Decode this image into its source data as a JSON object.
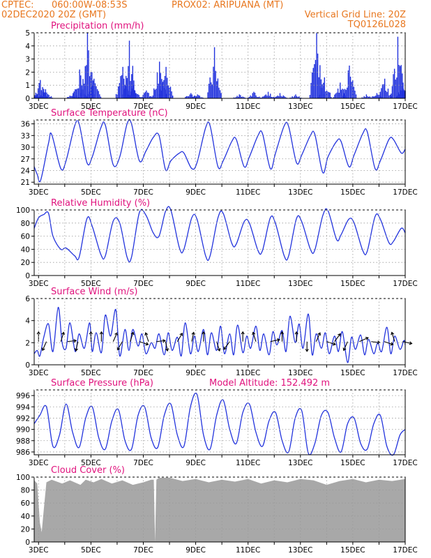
{
  "header": {
    "org": "CPTEC:",
    "coords": "060:00W-08:53S",
    "station": "PROX02: ARIPUANA (MT)",
    "datetime": "02DEC2020 20Z (GMT)",
    "grid_note": "Vertical Grid Line: 20Z",
    "code": "TQ0126L028"
  },
  "colors": {
    "header": "#e8771f",
    "title": "#e0127d",
    "series": "#2233dd",
    "cloud": "#a8a8a8",
    "grid": "#999999"
  },
  "x_axis": {
    "start_day": 2.833,
    "end_day": 17.0,
    "major_days": [
      3,
      5,
      7,
      9,
      11,
      13,
      15,
      17
    ],
    "major_labels": [
      "3DEC",
      "5DEC",
      "7DEC",
      "9DEC",
      "11DEC",
      "13DEC",
      "15DEC",
      "17DEC"
    ]
  },
  "chart_data": [
    {
      "id": "precip",
      "type": "bar",
      "title": "Precipitation (mm/h)",
      "ylim": [
        0,
        5
      ],
      "yticks": [
        0,
        1,
        2,
        3,
        4,
        5
      ],
      "events": [
        {
          "day": 2.95,
          "max": 0.3
        },
        {
          "day": 3.05,
          "max": 1.4
        },
        {
          "day": 3.25,
          "max": 0.7
        },
        {
          "day": 4.3,
          "max": 0.4
        },
        {
          "day": 4.55,
          "max": 2.2
        },
        {
          "day": 4.85,
          "max": 5.0
        },
        {
          "day": 5.1,
          "max": 1.5
        },
        {
          "day": 6.2,
          "max": 2.4
        },
        {
          "day": 6.45,
          "max": 4.4
        },
        {
          "day": 6.6,
          "max": 1.0
        },
        {
          "day": 7.1,
          "max": 0.6
        },
        {
          "day": 7.6,
          "max": 2.8
        },
        {
          "day": 7.85,
          "max": 2.4
        },
        {
          "day": 8.8,
          "max": 0.4
        },
        {
          "day": 9.05,
          "max": 0.3
        },
        {
          "day": 9.7,
          "max": 3.9
        },
        {
          "day": 10.65,
          "max": 0.3
        },
        {
          "day": 11.2,
          "max": 0.5
        },
        {
          "day": 11.75,
          "max": 0.5
        },
        {
          "day": 12.2,
          "max": 0.4
        },
        {
          "day": 12.8,
          "max": 0.3
        },
        {
          "day": 13.6,
          "max": 5.0
        },
        {
          "day": 13.9,
          "max": 1.6
        },
        {
          "day": 14.5,
          "max": 1.2
        },
        {
          "day": 14.85,
          "max": 2.5
        },
        {
          "day": 15.5,
          "max": 0.3
        },
        {
          "day": 15.9,
          "max": 0.4
        },
        {
          "day": 16.2,
          "max": 1.5
        },
        {
          "day": 16.7,
          "max": 4.7
        },
        {
          "day": 16.9,
          "max": 1.2
        }
      ]
    },
    {
      "id": "temp",
      "type": "line",
      "title": "Surface Temperature (nC)",
      "ylim": [
        20.5,
        37
      ],
      "yticks": [
        21,
        24,
        27,
        30,
        33,
        36
      ],
      "x": [
        2.833,
        2.95,
        3.08,
        3.38,
        3.5,
        3.85,
        4.05,
        4.38,
        4.55,
        4.85,
        5.05,
        5.38,
        5.55,
        5.85,
        6.1,
        6.38,
        6.55,
        6.85,
        7.1,
        7.38,
        7.6,
        7.85,
        8.05,
        8.38,
        8.55,
        8.85,
        9.05,
        9.38,
        9.55,
        9.85,
        10.05,
        10.38,
        10.55,
        10.85,
        11.05,
        11.38,
        11.55,
        11.85,
        12.05,
        12.38,
        12.55,
        12.85,
        13.05,
        13.38,
        13.55,
        13.85,
        14.05,
        14.38,
        14.55,
        14.85,
        15.05,
        15.38,
        15.55,
        15.85,
        16.05,
        16.38,
        16.55,
        16.85,
        17.0
      ],
      "y": [
        25.0,
        23.0,
        21.5,
        31.0,
        33.3,
        24.5,
        26.5,
        35.5,
        36.0,
        26.0,
        27.5,
        35.0,
        35.7,
        25.5,
        27.5,
        36.0,
        36.0,
        26.5,
        29.0,
        32.5,
        33.0,
        24.2,
        26.5,
        28.5,
        28.5,
        24.5,
        26.0,
        35.0,
        35.5,
        25.0,
        26.5,
        31.5,
        32.0,
        25.0,
        27.5,
        33.0,
        33.5,
        24.5,
        28.5,
        35.5,
        35.3,
        26.0,
        28.0,
        33.0,
        33.3,
        23.5,
        27.5,
        31.5,
        31.5,
        25.0,
        28.0,
        33.5,
        34.0,
        24.5,
        26.5,
        32.0,
        32.0,
        28.5,
        29.5
      ]
    },
    {
      "id": "rh",
      "type": "line",
      "title": "Relative Humidity (%)",
      "ylim": [
        0,
        100
      ],
      "yticks": [
        0,
        20,
        40,
        60,
        80,
        100
      ],
      "x": [
        2.833,
        3.0,
        3.2,
        3.38,
        3.55,
        3.85,
        4.05,
        4.38,
        4.55,
        4.85,
        5.05,
        5.38,
        5.55,
        5.85,
        6.1,
        6.38,
        6.55,
        6.85,
        7.1,
        7.38,
        7.6,
        7.85,
        8.05,
        8.38,
        8.55,
        8.85,
        9.05,
        9.38,
        9.55,
        9.85,
        10.05,
        10.38,
        10.55,
        10.85,
        11.05,
        11.38,
        11.55,
        11.85,
        12.05,
        12.38,
        12.55,
        12.85,
        13.05,
        13.38,
        13.55,
        13.85,
        14.05,
        14.38,
        14.55,
        14.85,
        15.05,
        15.38,
        15.55,
        15.85,
        16.05,
        16.38,
        16.55,
        16.85,
        17.0
      ],
      "y": [
        72,
        88,
        93,
        95,
        60,
        40,
        42,
        30,
        28,
        87,
        75,
        32,
        30,
        83,
        80,
        28,
        28,
        96,
        92,
        65,
        60,
        98,
        100,
        42,
        40,
        88,
        86,
        30,
        30,
        88,
        95,
        49,
        48,
        82,
        80,
        38,
        38,
        88,
        79,
        30,
        30,
        87,
        82,
        40,
        39,
        91,
        99,
        55,
        62,
        86,
        80,
        38,
        37,
        90,
        86,
        50,
        52,
        72,
        65
      ]
    },
    {
      "id": "wind",
      "type": "line",
      "title": "Surface Wind (m/s)",
      "ylim": [
        0,
        6
      ],
      "yticks": [
        0,
        2,
        4,
        6
      ],
      "x": [
        2.833,
        2.95,
        3.05,
        3.2,
        3.38,
        3.55,
        3.75,
        3.9,
        4.05,
        4.2,
        4.4,
        4.55,
        4.75,
        4.95,
        5.05,
        5.2,
        5.4,
        5.55,
        5.75,
        5.95,
        6.1,
        6.3,
        6.45,
        6.6,
        6.8,
        6.95,
        7.1,
        7.3,
        7.45,
        7.6,
        7.8,
        7.95,
        8.1,
        8.3,
        8.45,
        8.6,
        8.8,
        8.95,
        9.1,
        9.3,
        9.45,
        9.6,
        9.8,
        9.95,
        10.1,
        10.3,
        10.45,
        10.6,
        10.8,
        10.95,
        11.1,
        11.3,
        11.45,
        11.6,
        11.8,
        11.95,
        12.1,
        12.3,
        12.45,
        12.6,
        12.8,
        12.95,
        13.1,
        13.3,
        13.45,
        13.6,
        13.8,
        13.95,
        14.1,
        14.3,
        14.45,
        14.6,
        14.8,
        14.95,
        15.1,
        15.3,
        15.45,
        15.6,
        15.8,
        15.95,
        16.1,
        16.3,
        16.45,
        16.6,
        16.8,
        16.95,
        17.0
      ],
      "y": [
        1.0,
        1.3,
        0.8,
        2.5,
        3.7,
        1.2,
        5.2,
        2.0,
        1.5,
        3.8,
        1.2,
        2.8,
        1.5,
        3.8,
        1.2,
        2.9,
        1.1,
        4.5,
        2.6,
        5.0,
        0.8,
        3.2,
        1.3,
        3.2,
        1.7,
        2.8,
        1.0,
        2.0,
        1.5,
        2.8,
        0.9,
        2.9,
        1.3,
        2.5,
        0.8,
        3.8,
        1.0,
        2.6,
        1.2,
        3.2,
        0.9,
        2.9,
        1.3,
        3.5,
        1.0,
        2.8,
        0.9,
        3.6,
        1.1,
        2.6,
        1.5,
        3.5,
        1.3,
        2.8,
        0.9,
        3.0,
        1.8,
        3.1,
        1.2,
        4.4,
        2.0,
        3.7,
        1.5,
        4.6,
        0.9,
        2.8,
        1.5,
        2.9,
        1.0,
        2.6,
        1.2,
        3.0,
        0.2,
        2.5,
        1.4,
        2.7,
        0.9,
        2.3,
        1.0,
        2.0,
        1.2,
        3.4,
        1.0,
        2.6,
        1.4,
        2.2,
        1.8
      ],
      "vectors": [
        {
          "day": 3.0,
          "u": 0.0,
          "v": 1.0
        },
        {
          "day": 3.3,
          "u": -0.4,
          "v": -0.9
        },
        {
          "day": 3.85,
          "u": 0.3,
          "v": 0.95
        },
        {
          "day": 4.1,
          "u": 0.9,
          "v": 0.1
        },
        {
          "day": 4.5,
          "u": -0.2,
          "v": -0.95
        },
        {
          "day": 5.0,
          "u": 0.0,
          "v": 1.0
        },
        {
          "day": 5.4,
          "u": 0.0,
          "v": 1.0
        },
        {
          "day": 5.85,
          "u": 0.4,
          "v": 0.9
        },
        {
          "day": 6.2,
          "u": -0.5,
          "v": -0.85
        },
        {
          "day": 6.5,
          "u": 0.3,
          "v": 0.95
        },
        {
          "day": 6.85,
          "u": 0.9,
          "v": -0.3
        },
        {
          "day": 7.2,
          "u": -0.3,
          "v": 0.9
        },
        {
          "day": 7.5,
          "u": 0.9,
          "v": 0.1
        },
        {
          "day": 7.85,
          "u": 0.2,
          "v": -0.95
        },
        {
          "day": 8.3,
          "u": 0.5,
          "v": 0.85
        },
        {
          "day": 8.85,
          "u": 0.2,
          "v": 0.95
        },
        {
          "day": 9.3,
          "u": 0.0,
          "v": 1.0
        },
        {
          "day": 9.8,
          "u": 0.3,
          "v": -0.95
        },
        {
          "day": 10.3,
          "u": -0.6,
          "v": -0.8
        },
        {
          "day": 10.8,
          "u": 0.0,
          "v": 1.0
        },
        {
          "day": 11.3,
          "u": -0.3,
          "v": 0.95
        },
        {
          "day": 11.85,
          "u": 0.95,
          "v": 0.2
        },
        {
          "day": 12.3,
          "u": 0.0,
          "v": 1.0
        },
        {
          "day": 12.85,
          "u": 0.0,
          "v": 1.0
        },
        {
          "day": 13.25,
          "u": 0.0,
          "v": -1.0
        },
        {
          "day": 13.6,
          "u": 0.4,
          "v": 0.9
        },
        {
          "day": 14.0,
          "u": 0.9,
          "v": -0.3
        },
        {
          "day": 14.3,
          "u": 0.6,
          "v": 0.8
        },
        {
          "day": 14.8,
          "u": -0.4,
          "v": -0.9
        },
        {
          "day": 15.25,
          "u": 0.9,
          "v": 0.4
        },
        {
          "day": 15.7,
          "u": 0.9,
          "v": -0.1
        },
        {
          "day": 16.2,
          "u": 0.9,
          "v": -0.3
        },
        {
          "day": 16.6,
          "u": -0.3,
          "v": 0.95
        },
        {
          "day": 16.9,
          "u": 0.95,
          "v": -0.2
        }
      ]
    },
    {
      "id": "pressure",
      "type": "line",
      "title": "Surface Pressure (hPa)",
      "annotation": "Model Altitude: 152.492 m",
      "ylim": [
        985.5,
        997
      ],
      "yticks": [
        986,
        988,
        990,
        992,
        994,
        996
      ],
      "x": [
        2.833,
        3.05,
        3.3,
        3.55,
        3.8,
        4.05,
        4.3,
        4.55,
        4.8,
        5.05,
        5.3,
        5.55,
        5.8,
        6.05,
        6.3,
        6.55,
        6.8,
        7.05,
        7.3,
        7.55,
        7.8,
        8.05,
        8.3,
        8.55,
        8.8,
        9.05,
        9.3,
        9.55,
        9.8,
        10.05,
        10.3,
        10.55,
        10.8,
        11.05,
        11.3,
        11.55,
        11.8,
        12.05,
        12.3,
        12.55,
        12.8,
        13.05,
        13.3,
        13.55,
        13.8,
        14.05,
        14.3,
        14.55,
        14.8,
        15.05,
        15.3,
        15.55,
        15.8,
        16.05,
        16.3,
        16.55,
        16.8,
        17.0
      ],
      "y": [
        991.0,
        992.5,
        994.0,
        987.0,
        989.0,
        994.5,
        989.5,
        986.8,
        992.0,
        994.0,
        988.5,
        986.5,
        991.5,
        993.5,
        988.0,
        986.5,
        992.5,
        994.0,
        988.5,
        986.8,
        992.5,
        994.5,
        989.0,
        987.0,
        994.0,
        996.2,
        989.0,
        986.5,
        992.5,
        995.2,
        990.0,
        987.5,
        993.0,
        994.5,
        989.5,
        987.0,
        991.5,
        993.0,
        988.0,
        986.0,
        992.0,
        993.3,
        985.8,
        987.5,
        992.5,
        993.0,
        988.5,
        986.0,
        991.0,
        992.0,
        987.5,
        986.5,
        991.0,
        992.5,
        987.0,
        985.5,
        989.0,
        990.0
      ]
    },
    {
      "id": "cloud",
      "type": "area",
      "title": "Cloud Cover (%)",
      "ylim": [
        0,
        100
      ],
      "yticks": [
        0,
        20,
        40,
        60,
        80,
        100
      ],
      "x": [
        2.833,
        2.95,
        3.0,
        3.05,
        3.12,
        3.2,
        3.3,
        3.5,
        3.9,
        4.2,
        4.6,
        4.8,
        5.1,
        5.4,
        5.8,
        6.2,
        6.6,
        7.0,
        7.3,
        7.4,
        7.45,
        7.5,
        7.6,
        8.0,
        8.5,
        9.0,
        9.5,
        10.0,
        10.5,
        11.0,
        11.5,
        12.0,
        12.5,
        13.0,
        13.5,
        14.0,
        14.5,
        15.0,
        15.5,
        16.0,
        16.5,
        17.0
      ],
      "y": [
        95,
        90,
        60,
        30,
        15,
        50,
        92,
        96,
        90,
        95,
        88,
        96,
        92,
        97,
        90,
        95,
        88,
        92,
        96,
        96,
        0,
        96,
        99,
        99,
        94,
        97,
        92,
        96,
        93,
        97,
        90,
        95,
        92,
        97,
        95,
        88,
        94,
        97,
        92,
        96,
        94,
        97
      ]
    }
  ]
}
